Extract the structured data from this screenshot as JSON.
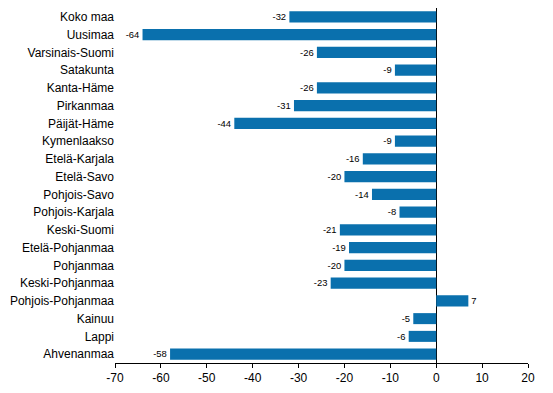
{
  "chart_data": {
    "type": "bar",
    "orientation": "horizontal",
    "categories": [
      "Koko maa",
      "Uusimaa",
      "Varsinais-Suomi",
      "Satakunta",
      "Kanta-Häme",
      "Pirkanmaa",
      "Päijät-Häme",
      "Kymenlaakso",
      "Etelä-Karjala",
      "Etelä-Savo",
      "Pohjois-Savo",
      "Pohjois-Karjala",
      "Keski-Suomi",
      "Etelä-Pohjanmaa",
      "Pohjanmaa",
      "Keski-Pohjanmaa",
      "Pohjois-Pohjanmaa",
      "Kainuu",
      "Lappi",
      "Ahvenanmaa"
    ],
    "values": [
      -32,
      -64,
      -26,
      -9,
      -26,
      -31,
      -44,
      -9,
      -16,
      -20,
      -14,
      -8,
      -21,
      -19,
      -20,
      -23,
      7,
      -5,
      -6,
      -58
    ],
    "color": "#0a70ad",
    "xlim": [
      -70,
      20
    ],
    "xticks": [
      -70,
      -60,
      -50,
      -40,
      -30,
      -20,
      -10,
      0,
      10,
      20
    ],
    "grid": false,
    "data_labels": true
  }
}
